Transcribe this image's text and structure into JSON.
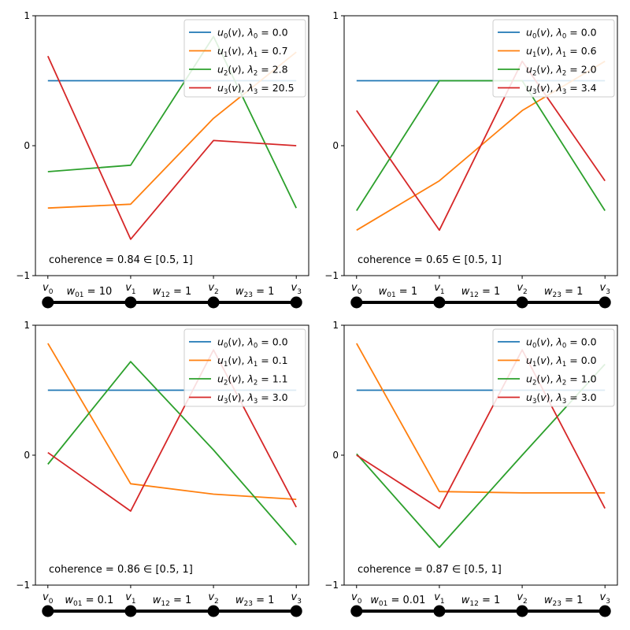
{
  "y_ticks": [
    "1",
    "0",
    "−1"
  ],
  "legend_labels": [
    "u0(v), λ0",
    "u1(v), λ1",
    "u2(v), λ2",
    "u3(v), λ3"
  ],
  "series_colors": [
    "#1f77b4",
    "#ff7f0e",
    "#2ca02c",
    "#d62728"
  ],
  "chart_data": [
    {
      "type": "line",
      "x": [
        "v0",
        "v1",
        "v2",
        "v3"
      ],
      "ylim": [
        -1,
        1
      ],
      "series": [
        {
          "name": "u0(v), λ0 = 0.0",
          "lambda": "0.0",
          "values": [
            0.5,
            0.5,
            0.5,
            0.5
          ]
        },
        {
          "name": "u1(v), λ1 = 0.7",
          "lambda": "0.7",
          "values": [
            -0.48,
            -0.45,
            0.21,
            0.72
          ]
        },
        {
          "name": "u2(v), λ2 = 2.8",
          "lambda": "2.8",
          "values": [
            -0.2,
            -0.15,
            0.84,
            -0.48
          ]
        },
        {
          "name": "u3(v), λ3 = 20.5",
          "lambda": "20.5",
          "values": [
            0.69,
            -0.72,
            0.04,
            0.0
          ]
        }
      ],
      "coherence": "0.84",
      "coherence_interval": "[0.5, 1]",
      "edge_weights": [
        "10",
        "1",
        "1"
      ],
      "edge_weight_labels": [
        "w01",
        "w12",
        "w23"
      ]
    },
    {
      "type": "line",
      "x": [
        "v0",
        "v1",
        "v2",
        "v3"
      ],
      "ylim": [
        -1,
        1
      ],
      "series": [
        {
          "name": "u0(v), λ0 = 0.0",
          "lambda": "0.0",
          "values": [
            0.5,
            0.5,
            0.5,
            0.5
          ]
        },
        {
          "name": "u1(v), λ1 = 0.6",
          "lambda": "0.6",
          "values": [
            -0.65,
            -0.27,
            0.27,
            0.65
          ]
        },
        {
          "name": "u2(v), λ2 = 2.0",
          "lambda": "2.0",
          "values": [
            -0.5,
            0.5,
            0.5,
            -0.5
          ]
        },
        {
          "name": "u3(v), λ3 = 3.4",
          "lambda": "3.4",
          "values": [
            0.27,
            -0.65,
            0.65,
            -0.27
          ]
        }
      ],
      "coherence": "0.65",
      "coherence_interval": "[0.5, 1]",
      "edge_weights": [
        "1",
        "1",
        "1"
      ],
      "edge_weight_labels": [
        "w01",
        "w12",
        "w23"
      ]
    },
    {
      "type": "line",
      "x": [
        "v0",
        "v1",
        "v2",
        "v3"
      ],
      "ylim": [
        -1,
        1
      ],
      "series": [
        {
          "name": "u0(v), λ0 = 0.0",
          "lambda": "0.0",
          "values": [
            0.5,
            0.5,
            0.5,
            0.5
          ]
        },
        {
          "name": "u1(v), λ1 = 0.1",
          "lambda": "0.1",
          "values": [
            0.86,
            -0.22,
            -0.3,
            -0.34
          ]
        },
        {
          "name": "u2(v), λ2 = 1.1",
          "lambda": "1.1",
          "values": [
            -0.07,
            0.72,
            0.04,
            -0.69
          ]
        },
        {
          "name": "u3(v), λ3 = 3.0",
          "lambda": "3.0",
          "values": [
            0.02,
            -0.43,
            0.81,
            -0.4
          ]
        }
      ],
      "coherence": "0.86",
      "coherence_interval": "[0.5, 1]",
      "edge_weights": [
        "0.1",
        "1",
        "1"
      ],
      "edge_weight_labels": [
        "w01",
        "w12",
        "w23"
      ]
    },
    {
      "type": "line",
      "x": [
        "v0",
        "v1",
        "v2",
        "v3"
      ],
      "ylim": [
        -1,
        1
      ],
      "series": [
        {
          "name": "u0(v), λ0 = 0.0",
          "lambda": "0.0",
          "values": [
            0.5,
            0.5,
            0.5,
            0.5
          ]
        },
        {
          "name": "u1(v), λ1 = 0.0",
          "lambda": "0.0",
          "values": [
            0.86,
            -0.28,
            -0.29,
            -0.29
          ]
        },
        {
          "name": "u2(v), λ2 = 1.0",
          "lambda": "1.0",
          "values": [
            0.01,
            -0.71,
            0.0,
            0.7
          ]
        },
        {
          "name": "u3(v), λ3 = 3.0",
          "lambda": "3.0",
          "values": [
            0.0,
            -0.41,
            0.81,
            -0.41
          ]
        }
      ],
      "coherence": "0.87",
      "coherence_interval": "[0.5, 1]",
      "edge_weights": [
        "0.01",
        "1",
        "1"
      ],
      "edge_weight_labels": [
        "w01",
        "w12",
        "w23"
      ]
    }
  ]
}
